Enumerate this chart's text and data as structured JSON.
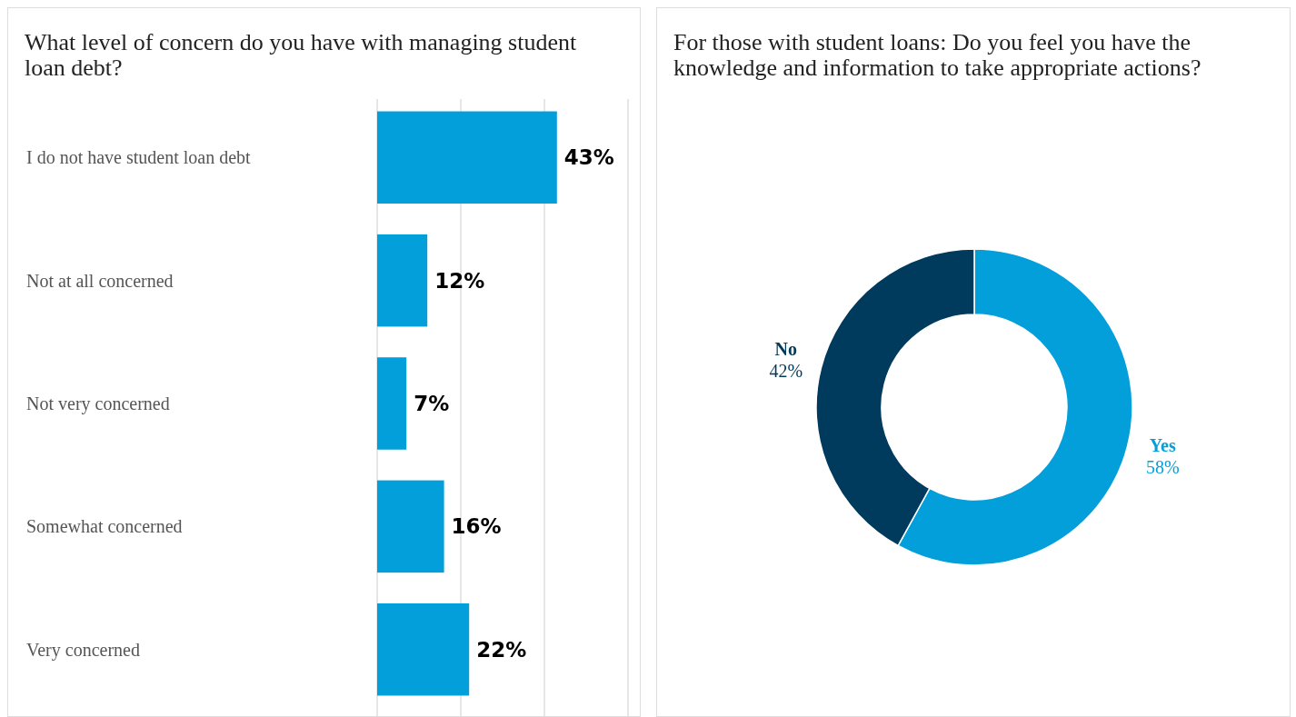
{
  "chart_data": [
    {
      "type": "bar",
      "orientation": "horizontal",
      "title": "What level of concern do you have with managing student loan debt?",
      "categories": [
        "I do not have student loan debt",
        "Not at all concerned",
        "Not very concerned",
        "Somewhat concerned",
        "Very concerned"
      ],
      "values": [
        43,
        12,
        7,
        16,
        22
      ],
      "value_labels": [
        "43%",
        "12%",
        "7%",
        "16%",
        "22%"
      ],
      "color": "#039fdb",
      "xlim": [
        0,
        60
      ],
      "xticks": [
        {
          "value": 0,
          "label": null
        },
        {
          "value": 20,
          "label": null
        },
        {
          "value": 40,
          "label": null
        },
        {
          "value": 60,
          "label": null
        }
      ],
      "grid": "x",
      "tick_labels": "y"
    },
    {
      "type": "donut",
      "title": "For those with student loans: Do you feel you have the knowledge and information to take appropriate actions?",
      "categories": [
        "Yes",
        "No"
      ],
      "values": [
        58,
        42
      ],
      "value_labels": [
        "58%",
        "42%"
      ],
      "colors": [
        "#039fdb",
        "#003a5c"
      ]
    }
  ]
}
